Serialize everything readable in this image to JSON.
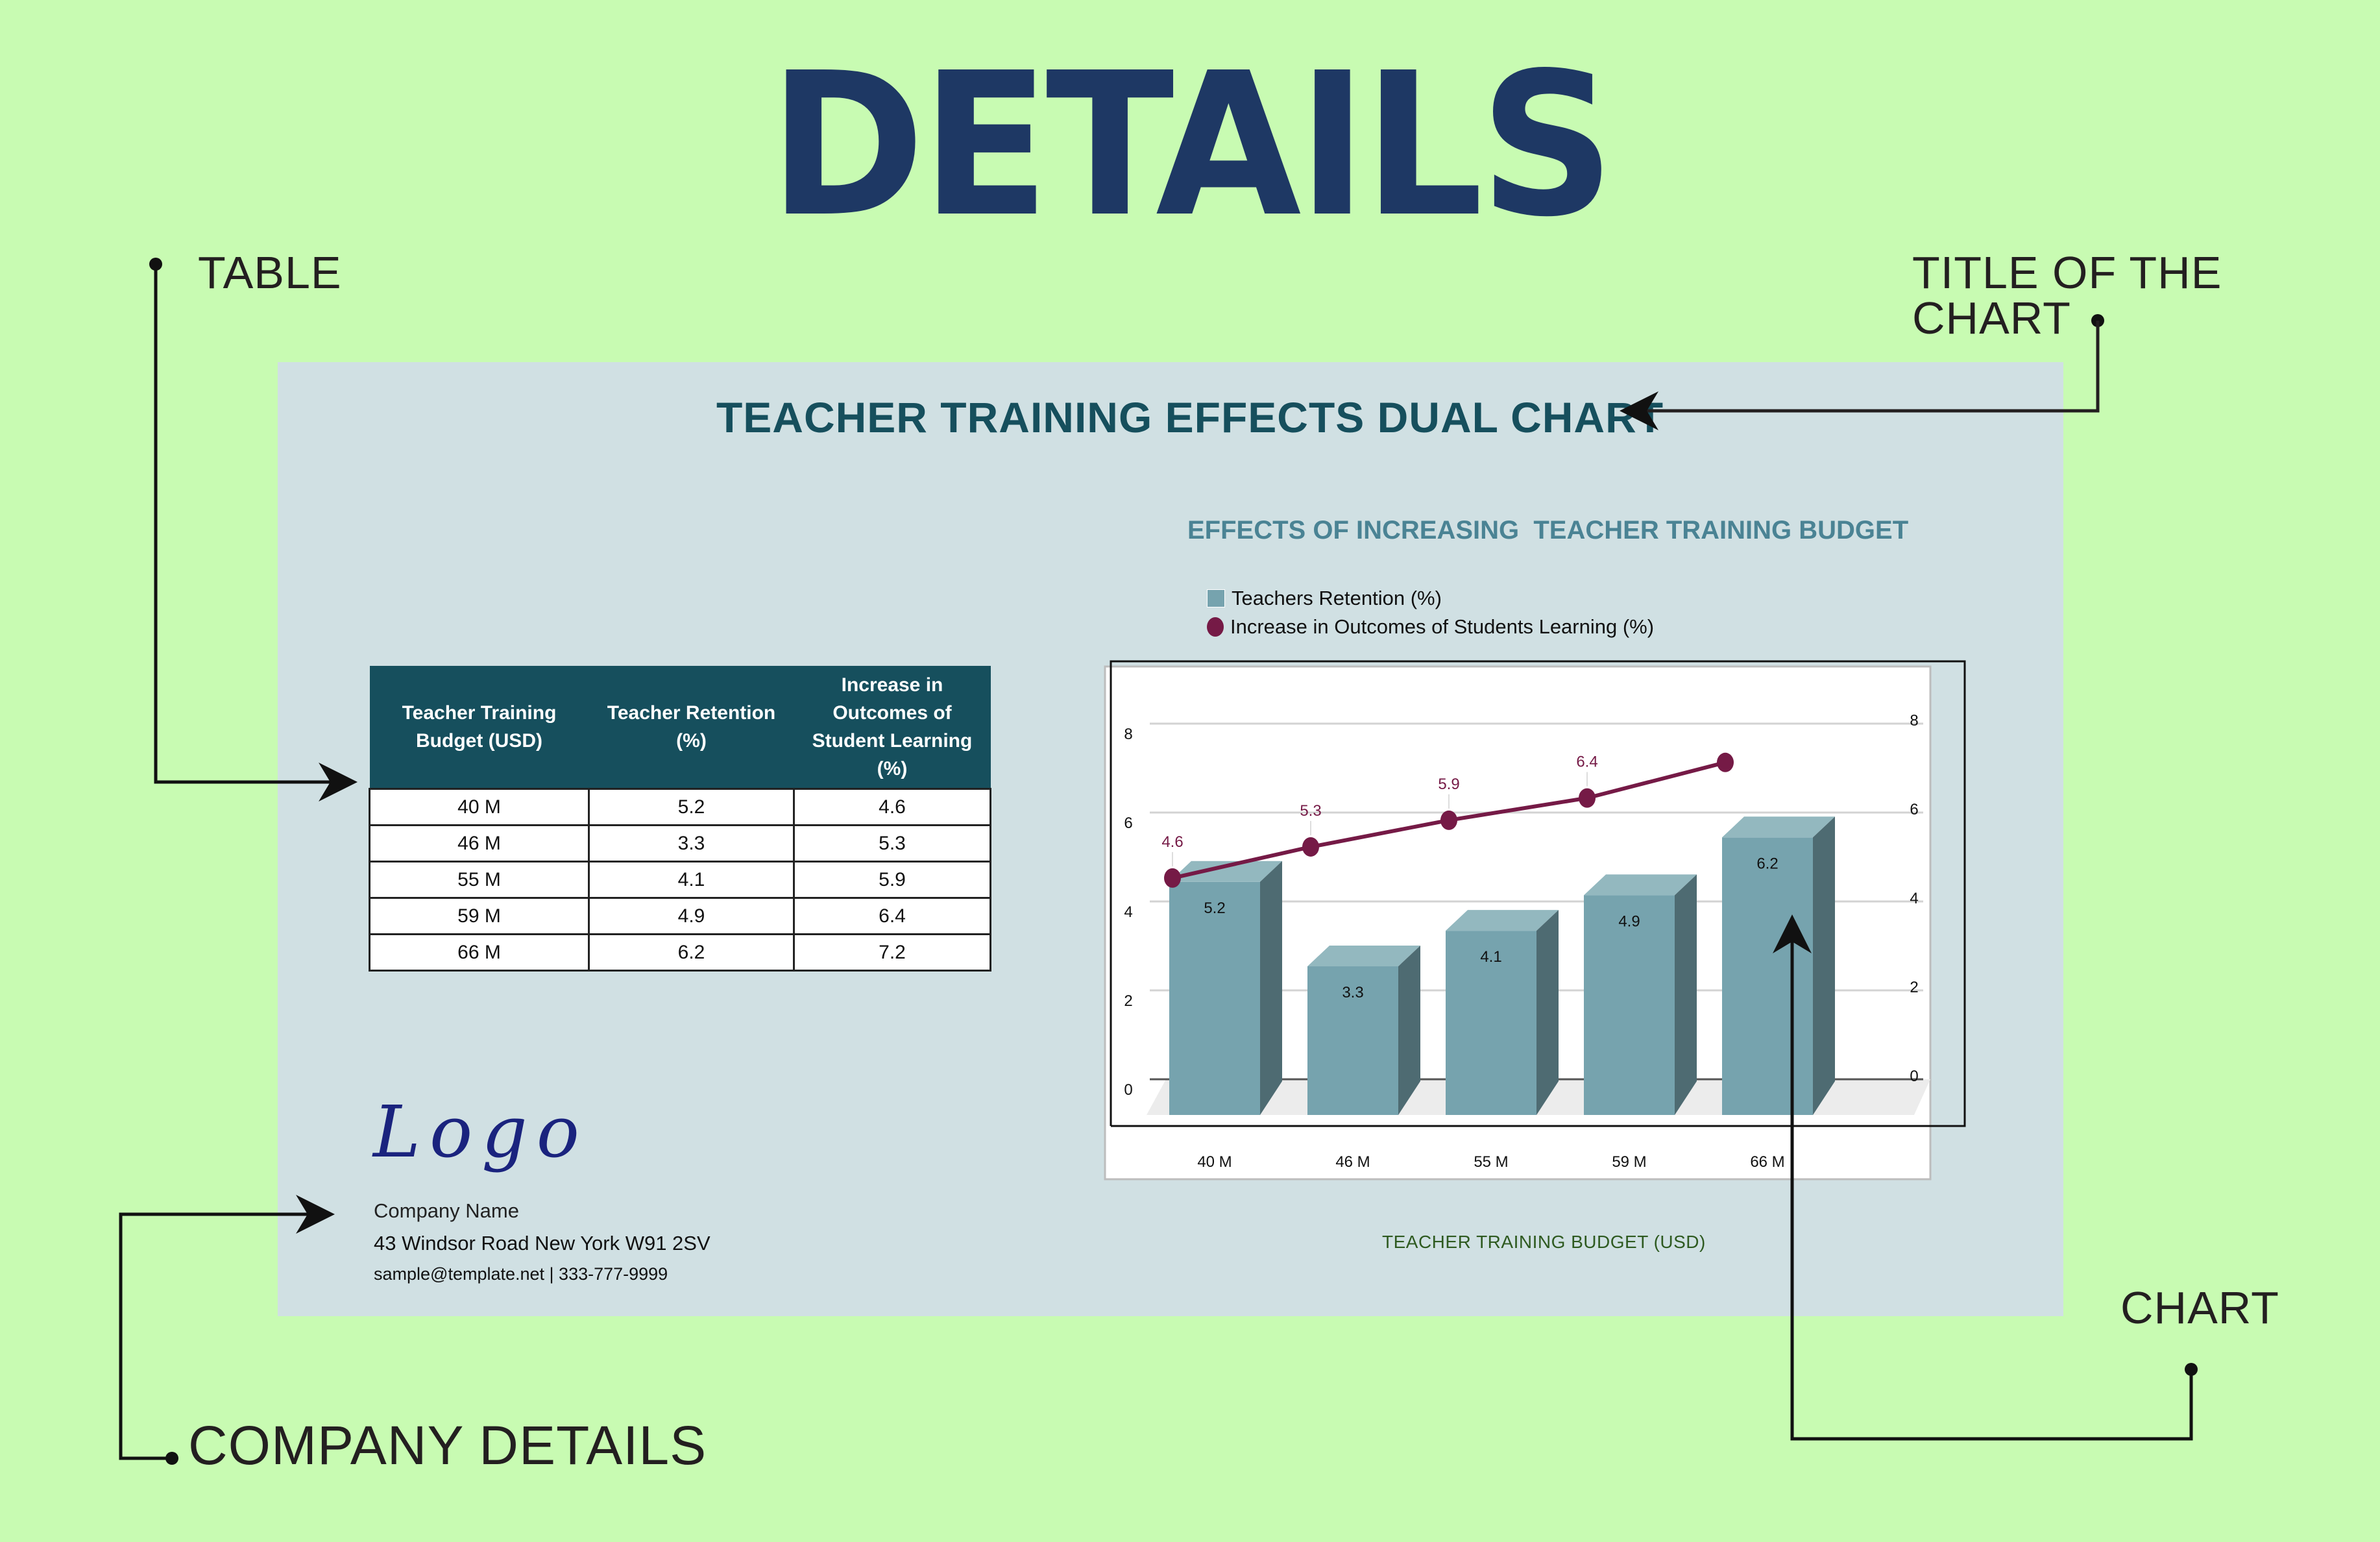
{
  "page": {
    "heading": "DETAILS",
    "background_color": "#c8fbb2",
    "heading_color": "#1e3864"
  },
  "callouts": {
    "table": "TABLE",
    "title_of_chart": "TITLE OF THE CHART",
    "chart": "CHART",
    "company_details": "COMPANY DETAILS"
  },
  "card": {
    "title": "TEACHER TRAINING EFFECTS DUAL CHART",
    "background_color": "#d0e0e3"
  },
  "table": {
    "headers": [
      "Teacher Training Budget (USD)",
      "Teacher Retention (%)",
      "Increase in Outcomes of Student Learning (%)"
    ],
    "rows": [
      [
        "40 M",
        "5.2",
        "4.6"
      ],
      [
        "46 M",
        "3.3",
        "5.3"
      ],
      [
        "55 M",
        "4.1",
        "5.9"
      ],
      [
        "59 M",
        "4.9",
        "6.4"
      ],
      [
        "66 M",
        "6.2",
        "7.2"
      ]
    ],
    "header_color": "#164f5d"
  },
  "chart_data": {
    "type": "bar",
    "combo": "bar+line",
    "title": "EFFECTS OF INCREASING  TEACHER TRAINING BUDGET",
    "xlabel": "TEACHER TRAINING BUDGET (USD)",
    "ylabel": "",
    "categories": [
      "40 M",
      "46 M",
      "55 M",
      "59 M",
      "66 M"
    ],
    "series": [
      {
        "name": "Teachers Retention (%)",
        "type": "bar",
        "axis": "left",
        "color": "#76a3ae",
        "values": [
          5.2,
          3.3,
          4.1,
          4.9,
          6.2
        ],
        "labels": [
          "5.2",
          "3.3",
          "4.1",
          "4.9",
          "6.2"
        ]
      },
      {
        "name": "Increase in Outcomes of Students Learning (%)",
        "type": "line",
        "axis": "right",
        "color": "#751a46",
        "values": [
          4.6,
          5.3,
          5.9,
          6.4,
          7.2
        ],
        "labels": [
          "4.6",
          "5.3",
          "5.9",
          "6.4",
          ""
        ]
      }
    ],
    "ylim": [
      0,
      8
    ],
    "y_ticks_left": [
      "8",
      "6",
      "4",
      "2",
      "0"
    ],
    "y_ticks_right": [
      "8",
      "6",
      "4",
      "2",
      "0"
    ],
    "grid": true,
    "legend_position": "top-left",
    "bar_style": "3d"
  },
  "company": {
    "logo_text": "Logo",
    "name": "Company Name",
    "address": "43 Windsor Road New York W91 2SV",
    "contact": "sample@template.net | 333-777-9999"
  }
}
